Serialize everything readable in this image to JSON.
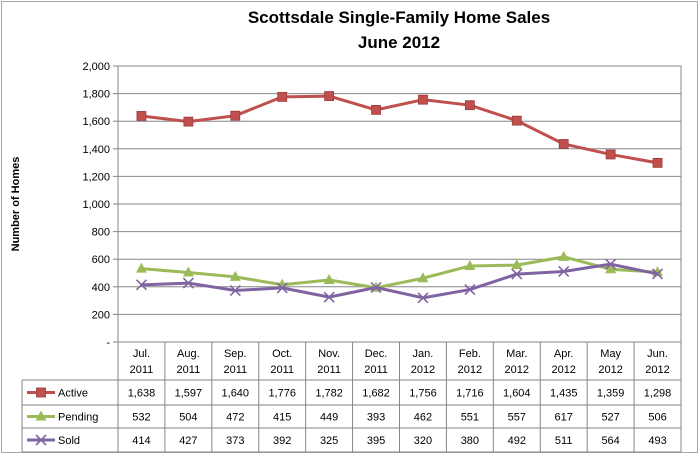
{
  "chart_data": {
    "type": "line",
    "title": [
      "Scottsdale Single-Family Home Sales",
      "June 2012"
    ],
    "ylabel": "Number of Homes",
    "xlabel": "",
    "ylim": [
      0,
      2000
    ],
    "yticks": [
      0,
      200,
      400,
      600,
      800,
      1000,
      1200,
      1400,
      1600,
      1800,
      2000
    ],
    "ytick_labels": [
      "-",
      "200",
      "400",
      "600",
      "800",
      "1,000",
      "1,200",
      "1,400",
      "1,600",
      "1,800",
      "2,000"
    ],
    "grid": "horizontal",
    "legend": "data-table",
    "categories": [
      [
        "Jul.",
        "2011"
      ],
      [
        "Aug.",
        "2011"
      ],
      [
        "Sep.",
        "2011"
      ],
      [
        "Oct.",
        "2011"
      ],
      [
        "Nov.",
        "2011"
      ],
      [
        "Dec.",
        "2011"
      ],
      [
        "Jan.",
        "2012"
      ],
      [
        "Feb.",
        "2012"
      ],
      [
        "Mar.",
        "2012"
      ],
      [
        "Apr.",
        "2012"
      ],
      [
        "May",
        "2012"
      ],
      [
        "Jun.",
        "2012"
      ]
    ],
    "series": [
      {
        "name": "Active",
        "color": "#c0504d",
        "marker": "square",
        "values": [
          1638,
          1597,
          1640,
          1776,
          1782,
          1682,
          1756,
          1716,
          1604,
          1435,
          1359,
          1298
        ],
        "labels": [
          "1,638",
          "1,597",
          "1,640",
          "1,776",
          "1,782",
          "1,682",
          "1,756",
          "1,716",
          "1,604",
          "1,435",
          "1,359",
          "1,298"
        ]
      },
      {
        "name": "Pending",
        "color": "#9bbb59",
        "marker": "triangle",
        "values": [
          532,
          504,
          472,
          415,
          449,
          393,
          462,
          551,
          557,
          617,
          527,
          506
        ],
        "labels": [
          "532",
          "504",
          "472",
          "415",
          "449",
          "393",
          "462",
          "551",
          "557",
          "617",
          "527",
          "506"
        ]
      },
      {
        "name": "Sold",
        "color": "#8064a2",
        "marker": "x",
        "values": [
          414,
          427,
          373,
          392,
          325,
          395,
          320,
          380,
          492,
          511,
          564,
          493
        ],
        "labels": [
          "414",
          "427",
          "373",
          "392",
          "325",
          "395",
          "320",
          "380",
          "492",
          "511",
          "564",
          "493"
        ]
      }
    ]
  }
}
